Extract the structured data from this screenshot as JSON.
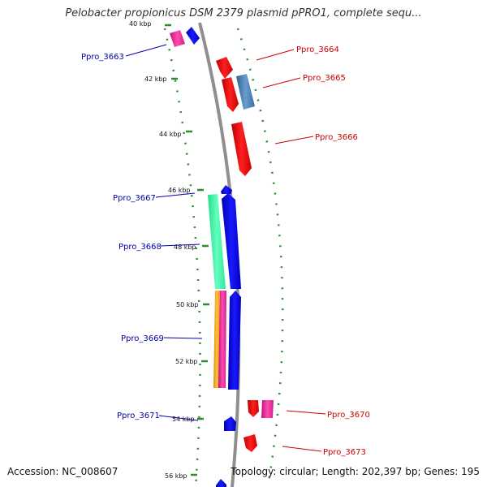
{
  "map": {
    "title": "Pelobacter propionicus DSM 2379 plasmid pPRO1, complete sequ...",
    "accession_text": "Accession: NC_008607",
    "summary_text": "Topology: circular; Length: 202,397 bp; Genes: 195",
    "colors": {
      "backbone": "#888888",
      "tick": "#2e8b2e",
      "forward_label": "#cc0000",
      "reverse_label": "#0000aa"
    }
  },
  "ticks": [
    {
      "label": "40 kbp"
    },
    {
      "label": "42 kbp"
    },
    {
      "label": "44 kbp"
    },
    {
      "label": "46 kbp"
    },
    {
      "label": "48 kbp"
    },
    {
      "label": "50 kbp"
    },
    {
      "label": "52 kbp"
    },
    {
      "label": "54 kbp"
    },
    {
      "label": "56 kbp"
    }
  ],
  "genes": [
    {
      "label": "Ppro_3663",
      "strand": "reverse"
    },
    {
      "label": "Ppro_3664",
      "strand": "forward"
    },
    {
      "label": "Ppro_3665",
      "strand": "forward"
    },
    {
      "label": "Ppro_3666",
      "strand": "forward"
    },
    {
      "label": "Ppro_3667",
      "strand": "reverse"
    },
    {
      "label": "Ppro_3668",
      "strand": "reverse"
    },
    {
      "label": "Ppro_3669",
      "strand": "reverse"
    },
    {
      "label": "Ppro_3670",
      "strand": "forward"
    },
    {
      "label": "Ppro_3671",
      "strand": "reverse"
    },
    {
      "label": "Ppro_3673",
      "strand": "forward"
    }
  ]
}
